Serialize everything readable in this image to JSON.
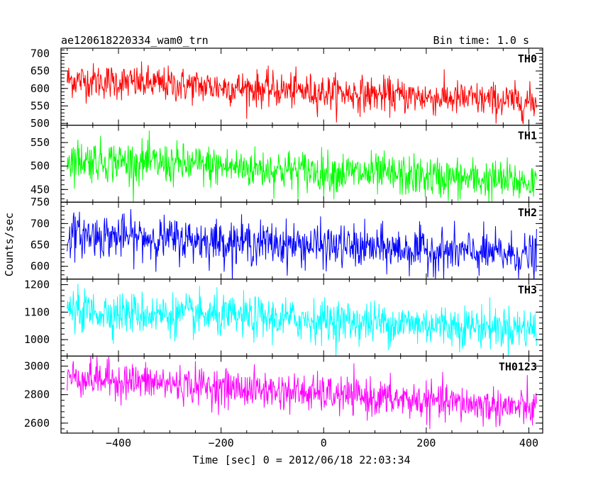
{
  "chart_data": {
    "type": "line",
    "title": "ae120618220334_wam0_trn",
    "subtitle": "Bin time: 1.0 s",
    "xlabel": "Time [sec] 0 = 2012/06/18 22:03:34",
    "ylabel": "Counts/sec",
    "xlim": [
      -512,
      427
    ],
    "x_ticks": [
      -400,
      -200,
      0,
      200,
      400
    ],
    "grid": false,
    "panels": [
      {
        "name": "TH0",
        "color": "#ff0000",
        "ylim": [
          495,
          715
        ],
        "y_ticks": [
          500,
          550,
          600,
          650,
          700
        ],
        "x_start": -500,
        "x_end": 415,
        "level_start": 625,
        "level_end": 560,
        "noise_sd": 25,
        "x": [
          -500,
          -400,
          -300,
          -200,
          -100,
          0,
          100,
          200,
          300,
          415
        ],
        "values": [
          625,
          622,
          620,
          615,
          605,
          600,
          590,
          580,
          570,
          560
        ]
      },
      {
        "name": "TH1",
        "color": "#00ff00",
        "ylim": [
          423,
          587
        ],
        "y_ticks": [
          450,
          500,
          550
        ],
        "x_start": -500,
        "x_end": 415,
        "level_start": 515,
        "level_end": 465,
        "noise_sd": 22,
        "x": [
          -500,
          -400,
          -300,
          -200,
          -100,
          0,
          100,
          200,
          300,
          415
        ],
        "values": [
          515,
          512,
          510,
          505,
          500,
          495,
          488,
          480,
          472,
          465
        ]
      },
      {
        "name": "TH2",
        "color": "#0000ff",
        "ylim": [
          570,
          750
        ],
        "y_ticks": [
          600,
          650,
          700,
          750
        ],
        "y_tick_labels": [
          "600",
          "650",
          "700",
          "750"
        ],
        "x_start": -500,
        "x_end": 415,
        "level_start": 675,
        "level_end": 625,
        "noise_sd": 25,
        "x": [
          -500,
          -400,
          -300,
          -200,
          -100,
          0,
          100,
          200,
          300,
          415
        ],
        "values": [
          675,
          672,
          670,
          665,
          660,
          655,
          648,
          640,
          632,
          625
        ]
      },
      {
        "name": "TH3",
        "color": "#00ffff",
        "ylim": [
          940,
          1220
        ],
        "y_ticks": [
          1000,
          1100,
          1200
        ],
        "x_start": -500,
        "x_end": 415,
        "level_start": 1105,
        "level_end": 1040,
        "noise_sd": 38,
        "x": [
          -500,
          -400,
          -300,
          -200,
          -100,
          0,
          100,
          200,
          300,
          415
        ],
        "values": [
          1105,
          1102,
          1098,
          1090,
          1080,
          1070,
          1062,
          1055,
          1048,
          1040
        ]
      },
      {
        "name": "TH0123",
        "color": "#ff00ff",
        "ylim": [
          2530,
          3070
        ],
        "y_ticks": [
          2600,
          2800,
          3000
        ],
        "x_start": -500,
        "x_end": 415,
        "level_start": 2925,
        "level_end": 2700,
        "noise_sd": 65,
        "x": [
          -500,
          -400,
          -300,
          -200,
          -100,
          0,
          100,
          200,
          300,
          415
        ],
        "values": [
          2925,
          2920,
          2910,
          2890,
          2860,
          2820,
          2780,
          2750,
          2720,
          2700
        ]
      }
    ]
  }
}
